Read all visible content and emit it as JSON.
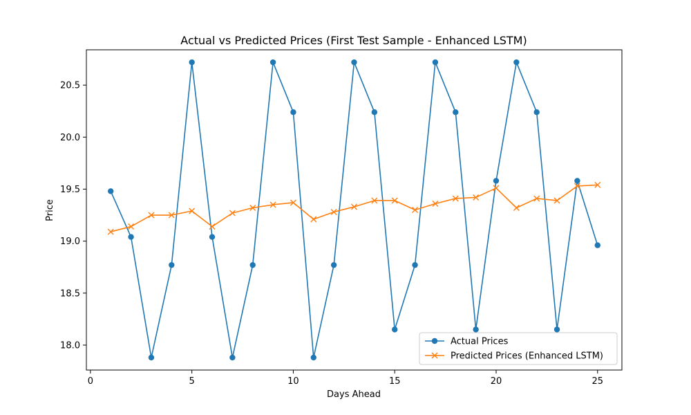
{
  "chart_data": {
    "type": "line",
    "title": "Actual vs Predicted Prices (First Test Sample - Enhanced LSTM)",
    "xlabel": "Days Ahead",
    "ylabel": "Price",
    "xlim": [
      -0.2,
      26.2
    ],
    "ylim": [
      17.76,
      20.84
    ],
    "x_ticks": [
      0,
      5,
      10,
      15,
      20,
      25
    ],
    "y_ticks": [
      18.0,
      18.5,
      19.0,
      19.5,
      20.0,
      20.5
    ],
    "y_tick_labels": [
      "18.0",
      "18.5",
      "19.0",
      "19.5",
      "20.0",
      "20.5"
    ],
    "x": [
      1,
      2,
      3,
      4,
      5,
      6,
      7,
      8,
      9,
      10,
      11,
      12,
      13,
      14,
      15,
      16,
      17,
      18,
      19,
      20,
      21,
      22,
      23,
      24,
      25
    ],
    "grid": false,
    "legend_position": "lower-right",
    "series": [
      {
        "name": "Actual Prices",
        "color": "#1f77b4",
        "marker": "circle",
        "values": [
          19.48,
          19.04,
          17.88,
          18.77,
          20.72,
          19.04,
          17.88,
          18.77,
          20.72,
          20.24,
          17.88,
          18.77,
          20.72,
          20.24,
          18.15,
          18.77,
          20.72,
          20.24,
          18.15,
          19.58,
          20.72,
          20.24,
          18.15,
          19.58,
          18.96
        ]
      },
      {
        "name": "Predicted Prices (Enhanced LSTM)",
        "color": "#ff7f0e",
        "marker": "x",
        "values": [
          19.09,
          19.14,
          19.25,
          19.25,
          19.29,
          19.14,
          19.27,
          19.32,
          19.35,
          19.37,
          19.21,
          19.28,
          19.33,
          19.39,
          19.39,
          19.3,
          19.36,
          19.41,
          19.42,
          19.51,
          19.32,
          19.41,
          19.39,
          19.53,
          19.54
        ]
      }
    ]
  }
}
